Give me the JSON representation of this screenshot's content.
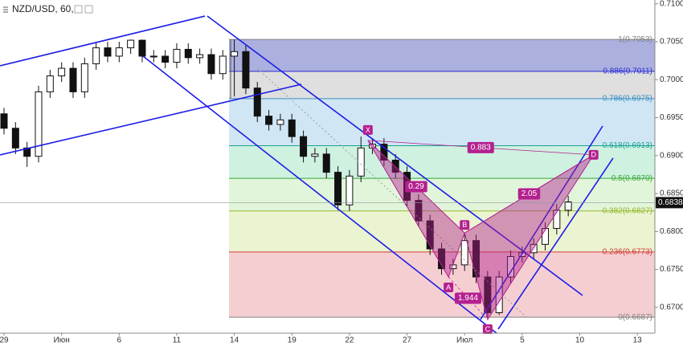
{
  "chart_data": {
    "type": "candlestick",
    "title": "NZD/USD, 60,",
    "categories": [
      "29",
      null,
      null,
      null,
      null,
      "Июн",
      null,
      null,
      null,
      null,
      "6",
      null,
      null,
      null,
      null,
      "11",
      null,
      null,
      null,
      null,
      "14",
      null,
      null,
      null,
      null,
      "19",
      null,
      null,
      null,
      null,
      "22",
      null,
      null,
      null,
      null,
      "27",
      null,
      null,
      null,
      null,
      "Июл",
      null,
      null,
      null,
      null,
      "5",
      null,
      null,
      null,
      null,
      "10",
      null,
      null,
      null,
      null,
      "13",
      null
    ],
    "open": [
      0.6955,
      0.6936,
      0.691,
      0.6899,
      0.6984,
      0.7005,
      0.7015,
      0.6984,
      0.7021,
      0.7042,
      0.7031,
      0.7042,
      0.7052,
      0.7031,
      0.7031,
      0.7023,
      0.704,
      0.7029,
      0.7033,
      0.7008,
      0.7031,
      0.7037,
      0.6989,
      0.6952,
      0.6941,
      0.6947,
      0.6925,
      0.6899,
      0.6902,
      0.6878,
      0.6835,
      0.6873,
      0.691,
      0.6915,
      0.6894,
      0.6878,
      0.6841,
      0.6814,
      0.6777,
      0.6751,
      0.6756,
      0.6788,
      0.674,
      0.6693,
      0.674,
      0.6767,
      0.6772,
      0.6783,
      0.6804,
      0.6828,
      null,
      null,
      null,
      null,
      null,
      null,
      null
    ],
    "high": [
      0.6963,
      0.6944,
      0.6918,
      0.6992,
      0.7013,
      0.7023,
      0.7023,
      0.7029,
      0.705,
      0.705,
      0.705,
      0.7053,
      0.7053,
      0.7039,
      0.7039,
      0.7048,
      0.7048,
      0.7041,
      0.7041,
      0.7039,
      0.7053,
      0.7045,
      0.6997,
      0.696,
      0.6955,
      0.6955,
      0.6933,
      0.691,
      0.691,
      0.6886,
      0.6881,
      0.6925,
      0.6923,
      0.6923,
      0.6902,
      0.6886,
      0.6849,
      0.6822,
      0.6785,
      0.6764,
      0.6796,
      0.6796,
      0.6748,
      0.6748,
      0.6775,
      0.678,
      0.6791,
      0.6812,
      0.6836,
      0.6847,
      null,
      null,
      null,
      null,
      null,
      null,
      null
    ],
    "low": [
      0.6928,
      0.6902,
      0.6885,
      0.6891,
      0.6976,
      0.6997,
      0.6976,
      0.6976,
      0.7013,
      0.7023,
      0.7023,
      0.7034,
      0.7023,
      0.7023,
      0.7015,
      0.7015,
      0.7021,
      0.7021,
      0.7,
      0.7,
      0.6978,
      0.6981,
      0.6944,
      0.6933,
      0.6933,
      0.6917,
      0.6891,
      0.6891,
      0.687,
      0.6828,
      0.6827,
      0.6865,
      0.6902,
      0.6886,
      0.687,
      0.6833,
      0.6806,
      0.6769,
      0.6743,
      0.6743,
      0.6748,
      0.6732,
      0.6687,
      0.669,
      0.6732,
      0.6759,
      0.6764,
      0.6775,
      0.6796,
      0.682,
      null,
      null,
      null,
      null,
      null,
      null,
      null
    ],
    "close": [
      0.6936,
      0.691,
      0.6899,
      0.6984,
      0.7005,
      0.7015,
      0.6984,
      0.7021,
      0.7042,
      0.7031,
      0.7042,
      0.7052,
      0.7031,
      0.7031,
      0.7023,
      0.704,
      0.7029,
      0.7033,
      0.7008,
      0.7031,
      0.7037,
      0.6989,
      0.6952,
      0.6941,
      0.6947,
      0.6925,
      0.6899,
      0.6902,
      0.6878,
      0.6835,
      0.6873,
      0.691,
      0.6915,
      0.6894,
      0.6878,
      0.6841,
      0.6814,
      0.6777,
      0.6751,
      0.6756,
      0.6788,
      0.674,
      0.6693,
      0.674,
      0.6767,
      0.6772,
      0.6783,
      0.6804,
      0.6828,
      0.6839,
      null,
      null,
      null,
      null,
      null,
      null,
      null
    ],
    "ylim": [
      0.6666,
      0.7105
    ],
    "yticks": [
      {
        "value": 0.71,
        "label": "0.7100"
      },
      {
        "value": 0.705,
        "label": "0.7050"
      },
      {
        "value": 0.7,
        "label": "0.7000"
      },
      {
        "value": 0.695,
        "label": "0.6950"
      },
      {
        "value": 0.69,
        "label": "0.6900"
      },
      {
        "value": 0.685,
        "label": "0.6850"
      },
      {
        "value": 0.68,
        "label": "0.6800"
      },
      {
        "value": 0.675,
        "label": "0.6750"
      },
      {
        "value": 0.67,
        "label": "0.6700"
      }
    ],
    "last_price": 0.6838,
    "grid": false,
    "fib_levels": [
      {
        "value": 0.7053,
        "label": "1(0.7053)",
        "color": "#808080",
        "zone": "#9ea2d9"
      },
      {
        "value": 0.7011,
        "label": "0.886(0.7011)",
        "color": "#2a2ad0",
        "zone": "#d9d9d9"
      },
      {
        "value": 0.6975,
        "label": "0.786(0.6975)",
        "color": "#3a8fc4",
        "zone": "#c8e2f3"
      },
      {
        "value": 0.6913,
        "label": "0.618(0.6913)",
        "color": "#1aa392",
        "zone": "#c6efdb"
      },
      {
        "value": 0.687,
        "label": "0.5(0.6870)",
        "color": "#3aa83a",
        "zone": "#dcf3d4"
      },
      {
        "value": 0.6827,
        "label": "0.382(0.6827)",
        "color": "#98b52a",
        "zone": "#e8f2c9"
      },
      {
        "value": 0.6773,
        "label": "0.236(0.6773)",
        "color": "#d23a3a",
        "zone": "#f3c5c9"
      },
      {
        "value": 0.6687,
        "label": "0(0.6687)",
        "color": "#808080",
        "zone": null
      }
    ],
    "pattern": {
      "color": "#b4208f",
      "points": [
        {
          "label": "X",
          "x": 31.6,
          "y": 0.692
        },
        {
          "label": "A",
          "x": 38.6,
          "y": 0.674
        },
        {
          "label": "B",
          "x": 40,
          "y": 0.6798
        },
        {
          "label": "C",
          "x": 42,
          "y": 0.6684
        },
        {
          "label": "D",
          "x": 51.2,
          "y": 0.6901
        }
      ],
      "ratios": [
        "0.883",
        "0.29",
        "1.944",
        "2.05"
      ]
    }
  }
}
